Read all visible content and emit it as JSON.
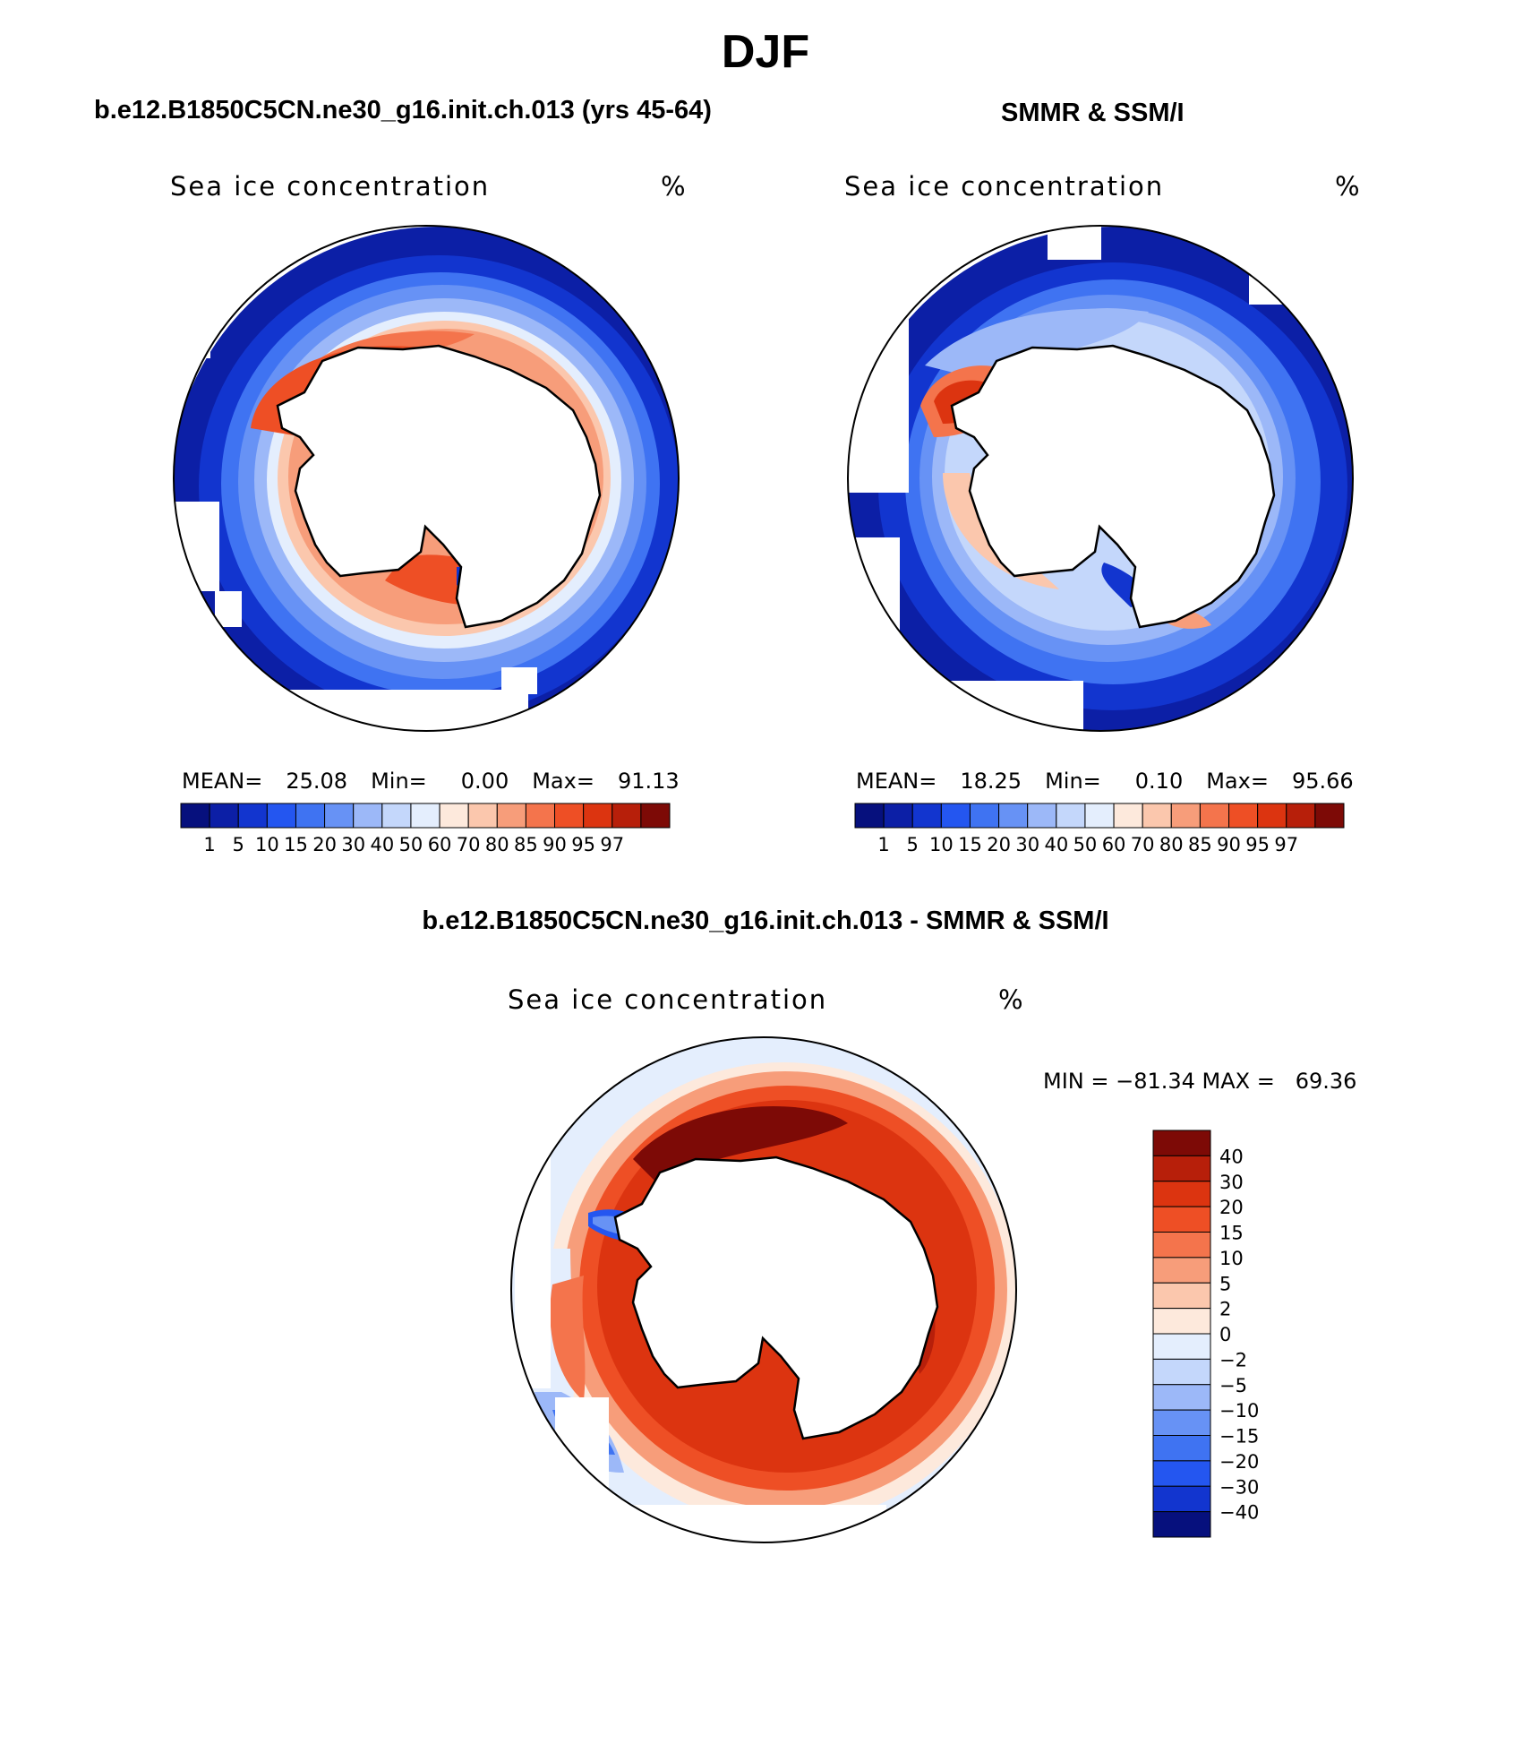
{
  "figure": {
    "title": "DJF",
    "panels": [
      {
        "title": "b.e12.B1850C5CN.ne30_g16.init.ch.013 (yrs 45-64)",
        "label_left": "Sea ice concentration",
        "label_right": "%",
        "stats": {
          "mean_label": "MEAN=",
          "mean": "25.08",
          "min_label": "Min=",
          "min": "0.00",
          "max_label": "Max=",
          "max": "91.13"
        }
      },
      {
        "title": "SMMR & SSM/I",
        "label_left": "Sea ice concentration",
        "label_right": "%",
        "stats": {
          "mean_label": "MEAN=",
          "mean": "18.25",
          "min_label": "Min=",
          "min": "0.10",
          "max_label": "Max=",
          "max": "95.66"
        }
      },
      {
        "title": "b.e12.B1850C5CN.ne30_g16.init.ch.013 - SMMR & SSM/I",
        "label_left": "Sea ice concentration",
        "label_right": "%",
        "stats_text": "MIN = −81.34 MAX =   69.36"
      }
    ]
  },
  "chart_data": [
    {
      "type": "heatmap",
      "title": "b.e12.B1850C5CN.ne30_g16.init.ch.013 (yrs 45-64)",
      "variable": "Sea ice concentration",
      "units": "%",
      "projection": "south polar stereographic",
      "colorbar_levels": [
        "1",
        "5",
        "10",
        "15",
        "20",
        "30",
        "40",
        "50",
        "60",
        "70",
        "80",
        "85",
        "90",
        "95",
        "97"
      ],
      "colorbar_colors": [
        "#06107d",
        "#0c1fa6",
        "#1235cf",
        "#2456f0",
        "#3f73f2",
        "#6792f5",
        "#9cb8f8",
        "#c4d7fb",
        "#e4eefd",
        "#fde9dc",
        "#fbc7ad",
        "#f79d7a",
        "#f4744c",
        "#ee4f25",
        "#dc3410",
        "#b71f0a",
        "#7d0a06"
      ],
      "mean": 25.08,
      "min": 0.0,
      "max": 91.13
    },
    {
      "type": "heatmap",
      "title": "SMMR & SSM/I",
      "variable": "Sea ice concentration",
      "units": "%",
      "projection": "south polar stereographic",
      "colorbar_levels": [
        "1",
        "5",
        "10",
        "15",
        "20",
        "30",
        "40",
        "50",
        "60",
        "70",
        "80",
        "85",
        "90",
        "95",
        "97"
      ],
      "colorbar_colors": [
        "#06107d",
        "#0c1fa6",
        "#1235cf",
        "#2456f0",
        "#3f73f2",
        "#6792f5",
        "#9cb8f8",
        "#c4d7fb",
        "#e4eefd",
        "#fde9dc",
        "#fbc7ad",
        "#f79d7a",
        "#f4744c",
        "#ee4f25",
        "#dc3410",
        "#b71f0a",
        "#7d0a06"
      ],
      "mean": 18.25,
      "min": 0.1,
      "max": 95.66
    },
    {
      "type": "heatmap",
      "title": "b.e12.B1850C5CN.ne30_g16.init.ch.013 - SMMR & SSM/I",
      "variable": "Sea ice concentration",
      "units": "%",
      "projection": "south polar stereographic",
      "colorbar_levels": [
        "40",
        "30",
        "20",
        "15",
        "10",
        "5",
        "2",
        "0",
        "−2",
        "−5",
        "−10",
        "−15",
        "−20",
        "−30",
        "−40"
      ],
      "colorbar_colors": [
        "#7d0a06",
        "#b71f0a",
        "#dc3410",
        "#ee4f25",
        "#f4744c",
        "#f79d7a",
        "#fbc7ad",
        "#fde9dc",
        "#e4eefd",
        "#c4d7fb",
        "#9cb8f8",
        "#6792f5",
        "#3f73f2",
        "#2456f0",
        "#1235cf",
        "#06107d"
      ],
      "min": -81.34,
      "max": 69.36
    }
  ]
}
